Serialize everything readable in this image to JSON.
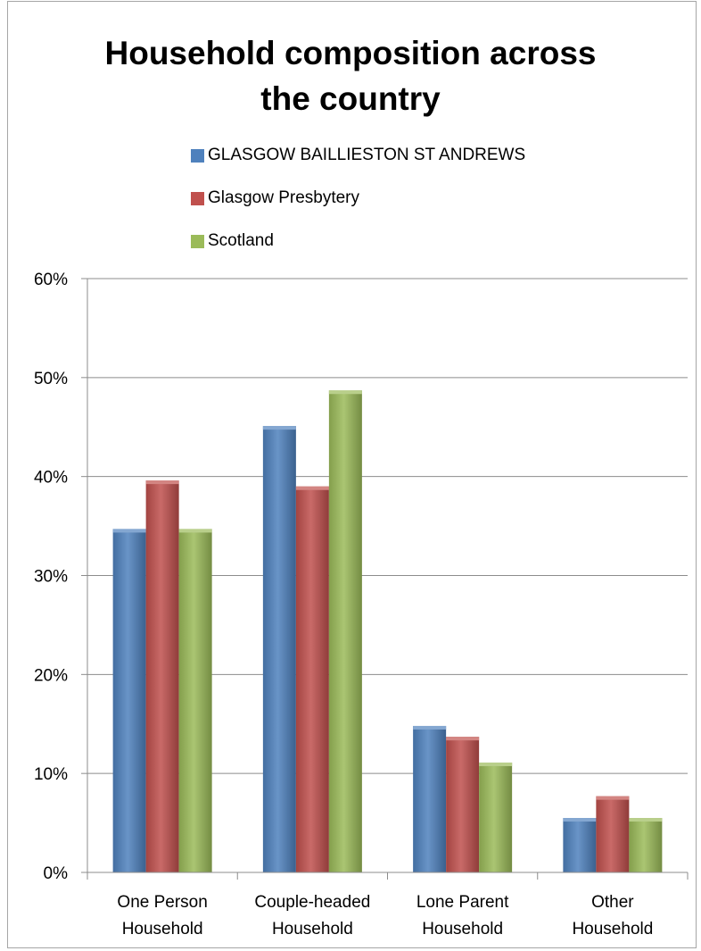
{
  "chart_data": {
    "type": "bar",
    "title": [
      "Household composition across",
      "the country"
    ],
    "categories": [
      [
        "One Person",
        "Household"
      ],
      [
        "Couple-headed",
        "Household"
      ],
      [
        "Lone Parent",
        "Household"
      ],
      [
        "Other",
        "Household"
      ]
    ],
    "series": [
      {
        "name": "GLASGOW BAILLIESTON ST ANDREWS",
        "values": [
          0.347,
          0.451,
          0.148,
          0.055
        ],
        "color": "#4f81bd"
      },
      {
        "name": "Glasgow Presbytery",
        "values": [
          0.396,
          0.39,
          0.137,
          0.077
        ],
        "color": "#c0504d"
      },
      {
        "name": "Scotland",
        "values": [
          0.347,
          0.487,
          0.111,
          0.055
        ],
        "color": "#9bbb59"
      }
    ],
    "ylim": [
      0,
      0.6
    ],
    "yticks": [
      0,
      0.1,
      0.2,
      0.3,
      0.4,
      0.5,
      0.6
    ],
    "ytick_labels": [
      "0%",
      "10%",
      "20%",
      "30%",
      "40%",
      "50%",
      "60%"
    ],
    "grid": true,
    "legend_position": "top"
  }
}
